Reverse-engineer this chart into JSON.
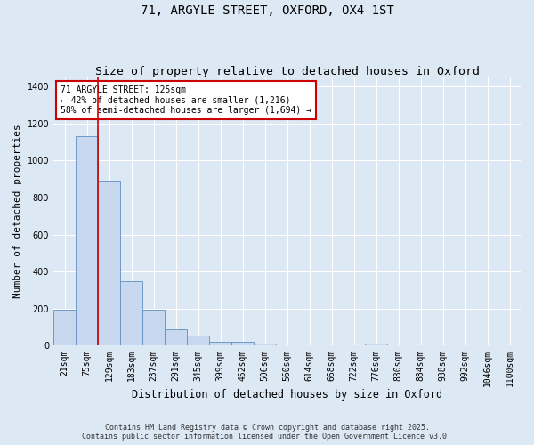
{
  "title_line1": "71, ARGYLE STREET, OXFORD, OX4 1ST",
  "title_line2": "Size of property relative to detached houses in Oxford",
  "xlabel": "Distribution of detached houses by size in Oxford",
  "ylabel": "Number of detached properties",
  "bar_color": "#c8d8ee",
  "bar_edge_color": "#6090c0",
  "background_color": "#dde8f5",
  "grid_color": "#ffffff",
  "categories": [
    "21sqm",
    "75sqm",
    "129sqm",
    "183sqm",
    "237sqm",
    "291sqm",
    "345sqm",
    "399sqm",
    "452sqm",
    "506sqm",
    "560sqm",
    "614sqm",
    "668sqm",
    "722sqm",
    "776sqm",
    "830sqm",
    "884sqm",
    "938sqm",
    "992sqm",
    "1046sqm",
    "1100sqm"
  ],
  "values": [
    195,
    1130,
    890,
    350,
    195,
    90,
    55,
    20,
    20,
    12,
    0,
    0,
    0,
    0,
    12,
    0,
    0,
    0,
    0,
    0,
    0
  ],
  "ylim": [
    0,
    1450
  ],
  "yticks": [
    0,
    200,
    400,
    600,
    800,
    1000,
    1200,
    1400
  ],
  "vline_x": 1.5,
  "vline_color": "#cc0000",
  "annotation_text": "71 ARGYLE STREET: 125sqm\n← 42% of detached houses are smaller (1,216)\n58% of semi-detached houses are larger (1,694) →",
  "annotation_box_facecolor": "#ffffff",
  "annotation_box_edgecolor": "#cc0000",
  "footer_line1": "Contains HM Land Registry data © Crown copyright and database right 2025.",
  "footer_line2": "Contains public sector information licensed under the Open Government Licence v3.0.",
  "title_fontsize": 10,
  "subtitle_fontsize": 9.5,
  "tick_fontsize": 7,
  "xlabel_fontsize": 8.5,
  "ylabel_fontsize": 8,
  "annotation_fontsize": 7,
  "footer_fontsize": 6
}
